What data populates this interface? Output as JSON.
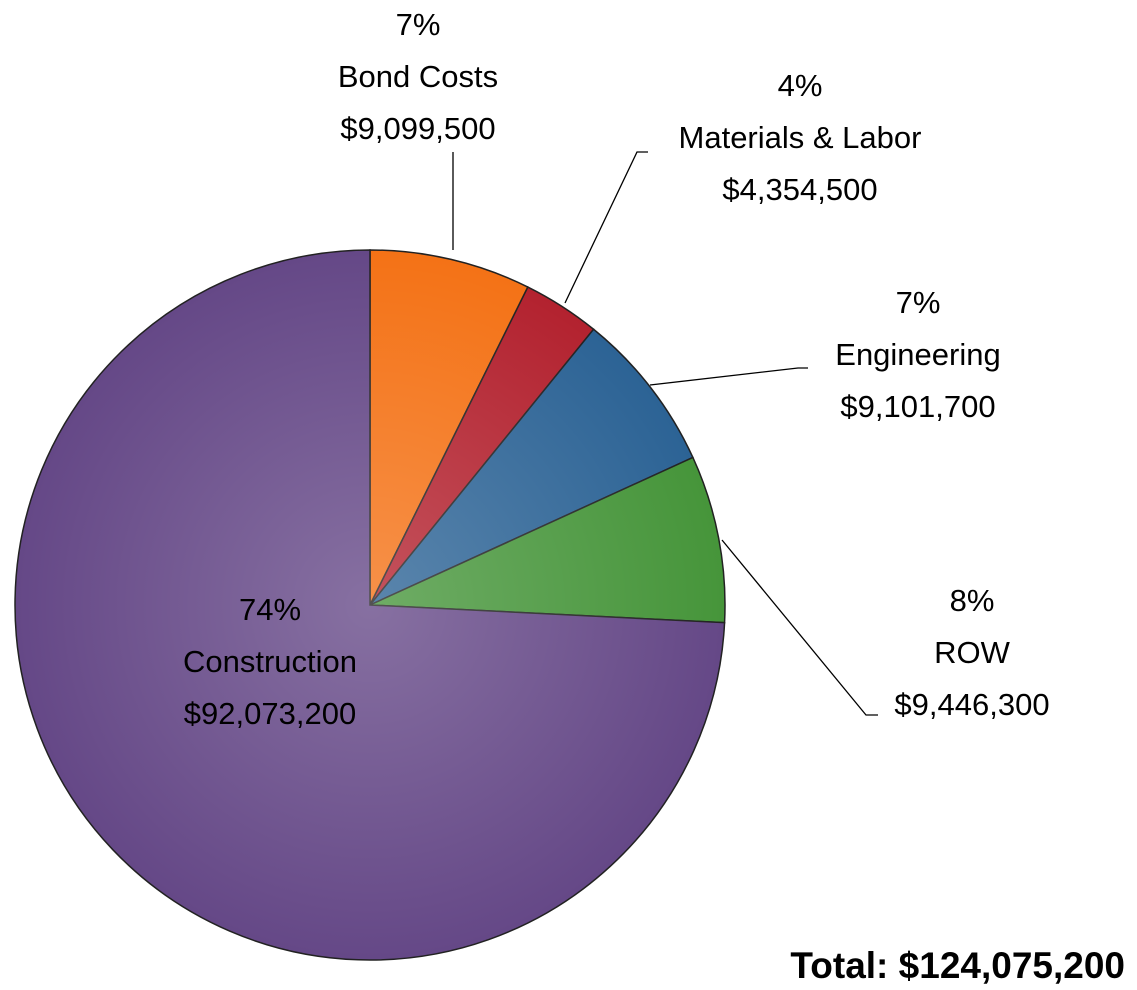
{
  "chart_data": {
    "type": "pie",
    "categories": [
      "Bond Costs",
      "Materials & Labor",
      "Engineering",
      "ROW",
      "Construction"
    ],
    "values": [
      9099500,
      4354500,
      9101700,
      9446300,
      92073200
    ],
    "value_labels": [
      "$9,099,500",
      "$4,354,500",
      "$9,101,700",
      "$9,446,300",
      "$92,073,200"
    ],
    "percent_labels": [
      "7%",
      "4%",
      "7%",
      "8%",
      "74%"
    ],
    "colors": [
      "#f47216",
      "#b3222f",
      "#2c6395",
      "#46953a",
      "#654887"
    ],
    "annotation": "Total: $124,075,200"
  }
}
